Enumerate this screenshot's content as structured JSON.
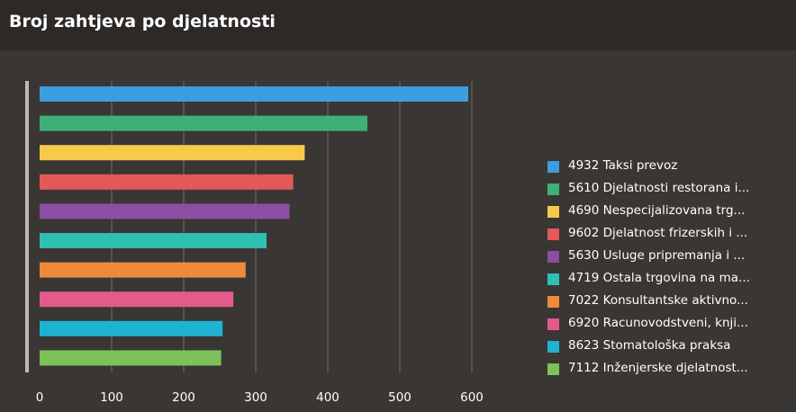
{
  "header": {
    "title": "Broj zahtjeva po djelatnosti"
  },
  "colors": {
    "background": "#3a3633",
    "header_background": "#2c2927",
    "gridline": "#8a8580",
    "axis": "#bdbab6"
  },
  "chart_data": {
    "type": "bar",
    "orientation": "horizontal",
    "title": "",
    "xlabel": "",
    "ylabel": "",
    "xlim": [
      0,
      600
    ],
    "xticks": [
      0,
      100,
      200,
      300,
      400,
      500,
      600
    ],
    "grid": true,
    "legend_position": "right",
    "categories": [
      "4932 Taksi prevoz",
      "5610 Djelatnosti restorana i...",
      "4690 Nespecijalizovana trg...",
      "9602 Djelatnost frizerskih i ...",
      "5630 Usluge pripremanja i ...",
      "4719 Ostala trgovina na ma...",
      "7022 Konsultantske aktivno...",
      "6920 Racunovodstveni, knji...",
      "8623 Stomatološka praksa",
      "7112 Inženjerske djelatnost..."
    ],
    "values": [
      595,
      455,
      368,
      352,
      347,
      315,
      286,
      269,
      254,
      252
    ],
    "colors": [
      "#3a9ee0",
      "#3faf7a",
      "#f7c94a",
      "#e45858",
      "#8a4fa3",
      "#2fbfb3",
      "#ee8a3c",
      "#e55a8c",
      "#1fb3d2",
      "#7cc15a"
    ]
  }
}
